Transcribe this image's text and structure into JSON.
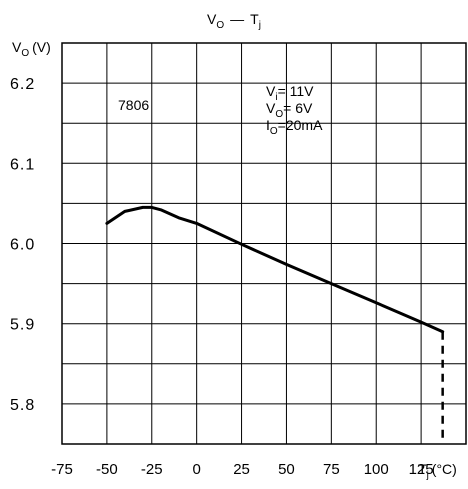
{
  "chart_data": {
    "type": "line",
    "title": "VO — Tj",
    "title_parts": {
      "a": "V",
      "a_sub": "O",
      "dash": "—",
      "b": "T",
      "b_sub": "j"
    },
    "ylabel": "VO (V)",
    "ylabel_parts": {
      "v": "V",
      "v_sub": "O",
      "unit": "(V)"
    },
    "xlabel": "Tj (°C)",
    "xlabel_parts": {
      "t": "T",
      "t_sub": "j",
      "unit": "(°C)"
    },
    "xlim": [
      -75,
      150
    ],
    "ylim": [
      5.75,
      6.25
    ],
    "x_ticks": [
      -75,
      -50,
      -25,
      0,
      25,
      50,
      75,
      100,
      125
    ],
    "x_tick_labels": [
      "-75",
      "-50",
      "-25",
      "0",
      "25",
      "50",
      "75",
      "100",
      "125"
    ],
    "y_ticks": [
      5.8,
      5.9,
      6.0,
      6.1,
      6.2
    ],
    "y_tick_labels": [
      "5.8",
      "5.9",
      "6.0",
      "6.1",
      "6.2"
    ],
    "grid": true,
    "device_label": "7806",
    "conditions": [
      {
        "name": "V",
        "sub": "i",
        "value": "= 11V"
      },
      {
        "name": "V",
        "sub": "O",
        "value": "= 6V"
      },
      {
        "name": "I",
        "sub": "O",
        "value": "=20mA"
      }
    ],
    "series": [
      {
        "x": [
          -50,
          -40,
          -30,
          -25,
          -20,
          -10,
          0,
          25,
          50,
          75,
          100,
          125,
          137
        ],
        "y": [
          6.025,
          6.04,
          6.045,
          6.045,
          6.042,
          6.032,
          6.025,
          5.999,
          5.974,
          5.95,
          5.926,
          5.902,
          5.89
        ]
      }
    ],
    "cutoff": {
      "x": 137,
      "y_from": 5.89,
      "y_to": 5.75,
      "style": "dashed"
    }
  }
}
